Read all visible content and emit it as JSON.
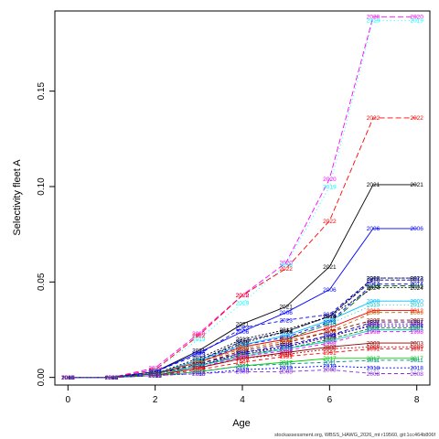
{
  "chart_data": {
    "type": "line",
    "xlabel": "Age",
    "ylabel": "Selectivity fleet A",
    "xlim": [
      -0.3,
      8.3
    ],
    "ylim": [
      -0.004,
      0.192
    ],
    "x_ticks": [
      "0",
      "2",
      "4",
      "6",
      "8"
    ],
    "y_ticks": [
      "0.00",
      "0.05",
      "0.10",
      "0.15"
    ],
    "ages": [
      0,
      1,
      2,
      3,
      4,
      5,
      6,
      7,
      8
    ],
    "label_position": "each point labelled with its year",
    "footer": "stockassessment.org, WBSS_HAWG_2026_mt r19560, git:1cc464b806f",
    "series": [
      {
        "name": "2020",
        "color": "#ff00ff",
        "dash": "6,3",
        "values": [
          0,
          0,
          0.005,
          0.023,
          0.043,
          0.06,
          0.104,
          0.189,
          0.189
        ]
      },
      {
        "name": "2019",
        "color": "#00ffff",
        "dash": "1,3",
        "values": [
          0,
          0,
          0.004,
          0.02,
          0.039,
          0.059,
          0.1,
          0.187,
          0.187
        ]
      },
      {
        "name": "2022",
        "color": "#ff0000",
        "dash": "6,3",
        "values": [
          0,
          0,
          0.004,
          0.022,
          0.043,
          0.057,
          0.082,
          0.136,
          0.136
        ]
      },
      {
        "name": "2021",
        "color": "#000000",
        "dash": "",
        "values": [
          0,
          0,
          0.003,
          0.014,
          0.028,
          0.037,
          0.058,
          0.101,
          0.101
        ]
      },
      {
        "name": "2006",
        "color": "#0000ff",
        "dash": "",
        "values": [
          0,
          0,
          0.003,
          0.013,
          0.024,
          0.034,
          0.046,
          0.078,
          0.078
        ]
      },
      {
        "name": "2023",
        "color": "#0000ff",
        "dash": "4,3",
        "values": [
          0,
          0,
          0.003,
          0.012,
          0.026,
          0.03,
          0.033,
          0.052,
          0.052
        ]
      },
      {
        "name": "2013",
        "color": "#000000",
        "dash": "2,2",
        "values": [
          0,
          0,
          0.002,
          0.01,
          0.02,
          0.025,
          0.032,
          0.052,
          0.052
        ]
      },
      {
        "name": "2016",
        "color": "#000080",
        "dash": "4,2",
        "values": [
          0,
          0,
          0.002,
          0.009,
          0.019,
          0.024,
          0.032,
          0.051,
          0.051
        ]
      },
      {
        "name": "2014",
        "color": "#0000ff",
        "dash": "4,3",
        "values": [
          0,
          0,
          0.002,
          0.008,
          0.017,
          0.021,
          0.029,
          0.049,
          0.049
        ]
      },
      {
        "name": "2015",
        "color": "#006400",
        "dash": "6,3",
        "values": [
          0,
          0,
          0.002,
          0.008,
          0.016,
          0.02,
          0.028,
          0.048,
          0.048
        ]
      },
      {
        "name": "2024",
        "color": "#000000",
        "dash": "2,2",
        "values": [
          0,
          0,
          0.002,
          0.009,
          0.018,
          0.024,
          0.032,
          0.047,
          0.047
        ]
      },
      {
        "name": "2000",
        "color": "#00bfff",
        "dash": "",
        "values": [
          0,
          0,
          0.002,
          0.009,
          0.017,
          0.022,
          0.03,
          0.04,
          0.04
        ]
      },
      {
        "name": "2010",
        "color": "#00cccc",
        "dash": "1,3",
        "values": [
          0,
          0,
          0.002,
          0.008,
          0.016,
          0.02,
          0.028,
          0.038,
          0.038
        ]
      },
      {
        "name": "2012",
        "color": "#ff0000",
        "dash": "",
        "values": [
          0,
          0,
          0.002,
          0.008,
          0.016,
          0.02,
          0.026,
          0.035,
          0.035
        ]
      },
      {
        "name": "2009",
        "color": "#cc6600",
        "dash": "4,3",
        "values": [
          0,
          0,
          0.002,
          0.008,
          0.015,
          0.019,
          0.024,
          0.034,
          0.034
        ]
      },
      {
        "name": "2007",
        "color": "#8b0000",
        "dash": "4,3",
        "values": [
          0,
          0,
          0.002,
          0.007,
          0.014,
          0.018,
          0.024,
          0.03,
          0.03
        ]
      },
      {
        "name": "1997",
        "color": "#000080",
        "dash": "4,3",
        "values": [
          0,
          0,
          0.002,
          0.007,
          0.013,
          0.017,
          0.022,
          0.029,
          0.029
        ]
      },
      {
        "name": "1996",
        "color": "#800080",
        "dash": "2,2",
        "values": [
          0,
          0,
          0.002,
          0.006,
          0.012,
          0.016,
          0.021,
          0.028,
          0.028
        ]
      },
      {
        "name": "2004",
        "color": "#0000ff",
        "dash": "2,2",
        "values": [
          0,
          0,
          0.002,
          0.006,
          0.013,
          0.016,
          0.022,
          0.027,
          0.027
        ]
      },
      {
        "name": "2001",
        "color": "#008000",
        "dash": "4,2",
        "values": [
          0,
          0,
          0.002,
          0.006,
          0.012,
          0.015,
          0.02,
          0.026,
          0.026
        ]
      },
      {
        "name": "2005",
        "color": "#00cccc",
        "dash": "",
        "values": [
          0,
          0,
          0.001,
          0.006,
          0.011,
          0.015,
          0.019,
          0.025,
          0.025
        ]
      },
      {
        "name": "1998",
        "color": "#ff00ff",
        "dash": "4,3",
        "values": [
          0,
          0,
          0.001,
          0.005,
          0.011,
          0.014,
          0.018,
          0.024,
          0.024
        ]
      },
      {
        "name": "2003",
        "color": "#8b0000",
        "dash": "",
        "values": [
          0,
          0,
          0.001,
          0.005,
          0.01,
          0.013,
          0.016,
          0.018,
          0.018
        ]
      },
      {
        "name": "1999",
        "color": "#cc0000",
        "dash": "2,2",
        "values": [
          0,
          0,
          0.001,
          0.005,
          0.01,
          0.012,
          0.015,
          0.016,
          0.016
        ]
      },
      {
        "name": "1991",
        "color": "#ff0000",
        "dash": "4,3",
        "values": [
          0,
          0,
          0.001,
          0.004,
          0.008,
          0.011,
          0.013,
          0.015,
          0.015
        ]
      },
      {
        "name": "2017",
        "color": "#00cc00",
        "dash": "",
        "values": [
          0,
          0,
          0.001,
          0.003,
          0.006,
          0.008,
          0.01,
          0.01,
          0.01
        ]
      },
      {
        "name": "2011",
        "color": "#008b8b",
        "dash": "4,3",
        "values": [
          0,
          0,
          0.001,
          0.003,
          0.006,
          0.007,
          0.008,
          0.009,
          0.009
        ]
      },
      {
        "name": "2018",
        "color": "#0000ff",
        "dash": "2,2",
        "values": [
          0,
          0,
          0.001,
          0.002,
          0.004,
          0.005,
          0.006,
          0.005,
          0.005
        ]
      },
      {
        "name": "2008",
        "color": "#8a2be2",
        "dash": "4,3",
        "values": [
          0,
          0,
          0.001,
          0.002,
          0.003,
          0.003,
          0.004,
          0.002,
          0.002
        ]
      }
    ]
  }
}
